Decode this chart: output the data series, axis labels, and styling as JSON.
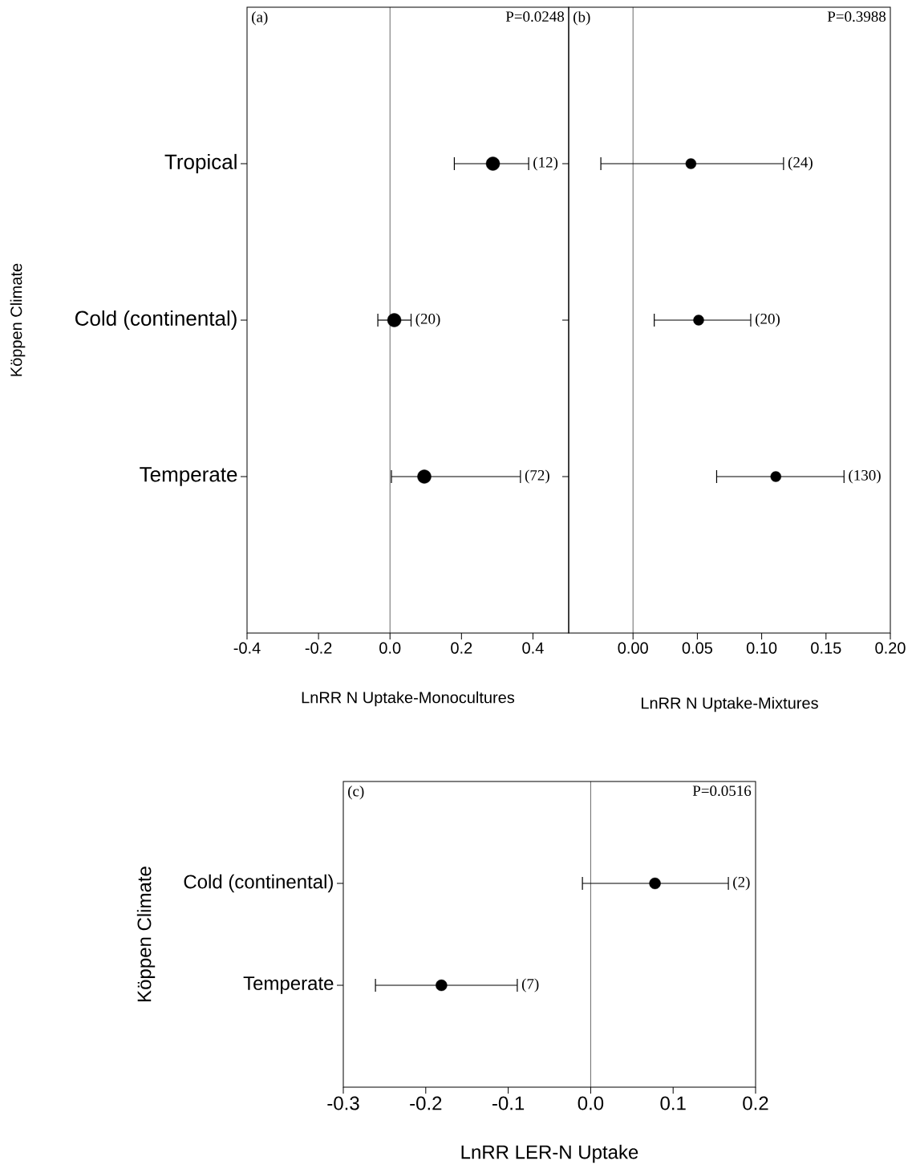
{
  "chart_data": [
    {
      "type": "scatter",
      "orientation": "horizontal",
      "xlabel": "LnRR N Uptake-Monocultures",
      "ylabel": "Köppen Climate",
      "categories": [
        "Tropical",
        "Cold (continental)",
        "Temperate"
      ],
      "values": [
        0.288,
        0.012,
        0.096
      ],
      "errors": [
        [
          0.18,
          0.388
        ],
        [
          -0.034,
          0.059
        ],
        [
          0.004,
          0.365
        ]
      ],
      "color": "#000000",
      "marker": "circle",
      "xlim": [
        -0.4,
        0.5
      ],
      "xticks": [
        {
          "value": -0.4,
          "label": "-0.4"
        },
        {
          "value": -0.2,
          "label": "-0.2"
        },
        {
          "value": 0,
          "label": "0.0"
        },
        {
          "value": 0.2,
          "label": "0.2"
        },
        {
          "value": 0.4,
          "label": "0.4"
        }
      ],
      "ref_lines": [
        {
          "axis": "x",
          "value": 0,
          "color": "#000000"
        }
      ],
      "annotations": [
        "(a)",
        "P=0.0248",
        {
          "text": "(12)",
          "x": 0.388,
          "y": "Tropical"
        },
        {
          "text": "(20)",
          "x": 0.059,
          "y": "Cold (continental)"
        },
        {
          "text": "(72)",
          "x": 0.365,
          "y": "Temperate"
        }
      ]
    },
    {
      "type": "scatter",
      "orientation": "horizontal",
      "xlabel": "LnRR N Uptake-Mixtures",
      "categories": [
        "Tropical",
        "Cold (continental)",
        "Temperate"
      ],
      "values": [
        0.045,
        0.051,
        0.111
      ],
      "errors": [
        [
          -0.025,
          0.117
        ],
        [
          0.0165,
          0.0915
        ],
        [
          0.065,
          0.164
        ]
      ],
      "color": "#000000",
      "marker": "circle",
      "tick_labels": "x",
      "xlim": [
        -0.05,
        0.2
      ],
      "xticks": [
        {
          "value": 0,
          "label": "0.00"
        },
        {
          "value": 0.05,
          "label": "0.05"
        },
        {
          "value": 0.1,
          "label": "0.10"
        },
        {
          "value": 0.15,
          "label": "0.15"
        },
        {
          "value": 0.2,
          "label": "0.20"
        }
      ],
      "ref_lines": [
        {
          "axis": "x",
          "value": 0,
          "color": "#000000"
        }
      ],
      "annotations": [
        "(b)",
        "P=0.3988",
        {
          "text": "(24)",
          "x": 0.117,
          "y": "Tropical"
        },
        {
          "text": "(20)",
          "x": 0.0915,
          "y": "Cold (continental)"
        },
        {
          "text": "(130)",
          "x": 0.164,
          "y": "Temperate"
        }
      ]
    },
    {
      "type": "scatter",
      "orientation": "horizontal",
      "xlabel": "LnRR LER-N Uptake",
      "ylabel": "Köppen Climate",
      "categories": [
        "Cold (continental)",
        "Temperate"
      ],
      "values": [
        0.078,
        -0.181
      ],
      "errors": [
        [
          -0.01,
          0.167
        ],
        [
          -0.261,
          -0.089
        ]
      ],
      "color": "#000000",
      "marker": "circle",
      "xlim": [
        -0.3,
        0.2
      ],
      "xticks": [
        {
          "value": -0.3,
          "label": "-0.3"
        },
        {
          "value": -0.2,
          "label": "-0.2"
        },
        {
          "value": -0.1,
          "label": "-0.1"
        },
        {
          "value": 0,
          "label": "0.0"
        },
        {
          "value": 0.1,
          "label": "0.1"
        },
        {
          "value": 0.2,
          "label": "0.2"
        }
      ],
      "ref_lines": [
        {
          "axis": "x",
          "value": 0,
          "color": "#000000"
        }
      ],
      "annotations": [
        "(c)",
        "P=0.0516",
        {
          "text": "(2)",
          "x": 0.167,
          "y": "Cold (continental)"
        },
        {
          "text": "(7)",
          "x": -0.089,
          "y": "Temperate"
        }
      ]
    }
  ]
}
